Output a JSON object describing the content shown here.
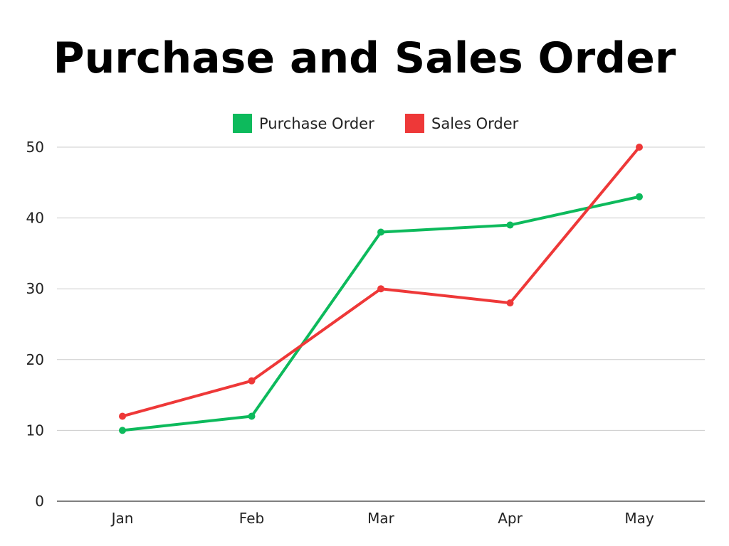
{
  "chart_data": {
    "type": "line",
    "title": "Purchase and Sales Order",
    "categories": [
      "Jan",
      "Feb",
      "Mar",
      "Apr",
      "May"
    ],
    "series": [
      {
        "name": "Purchase Order",
        "color": "#0dba5c",
        "values": [
          10,
          12,
          38,
          39,
          43
        ]
      },
      {
        "name": "Sales Order",
        "color": "#ee3838",
        "values": [
          12,
          17,
          30,
          28,
          50
        ]
      }
    ],
    "ylim": [
      0,
      50
    ],
    "yticks": [
      0,
      10,
      20,
      30,
      40,
      50
    ],
    "grid": true,
    "legend_position": "top-center"
  }
}
